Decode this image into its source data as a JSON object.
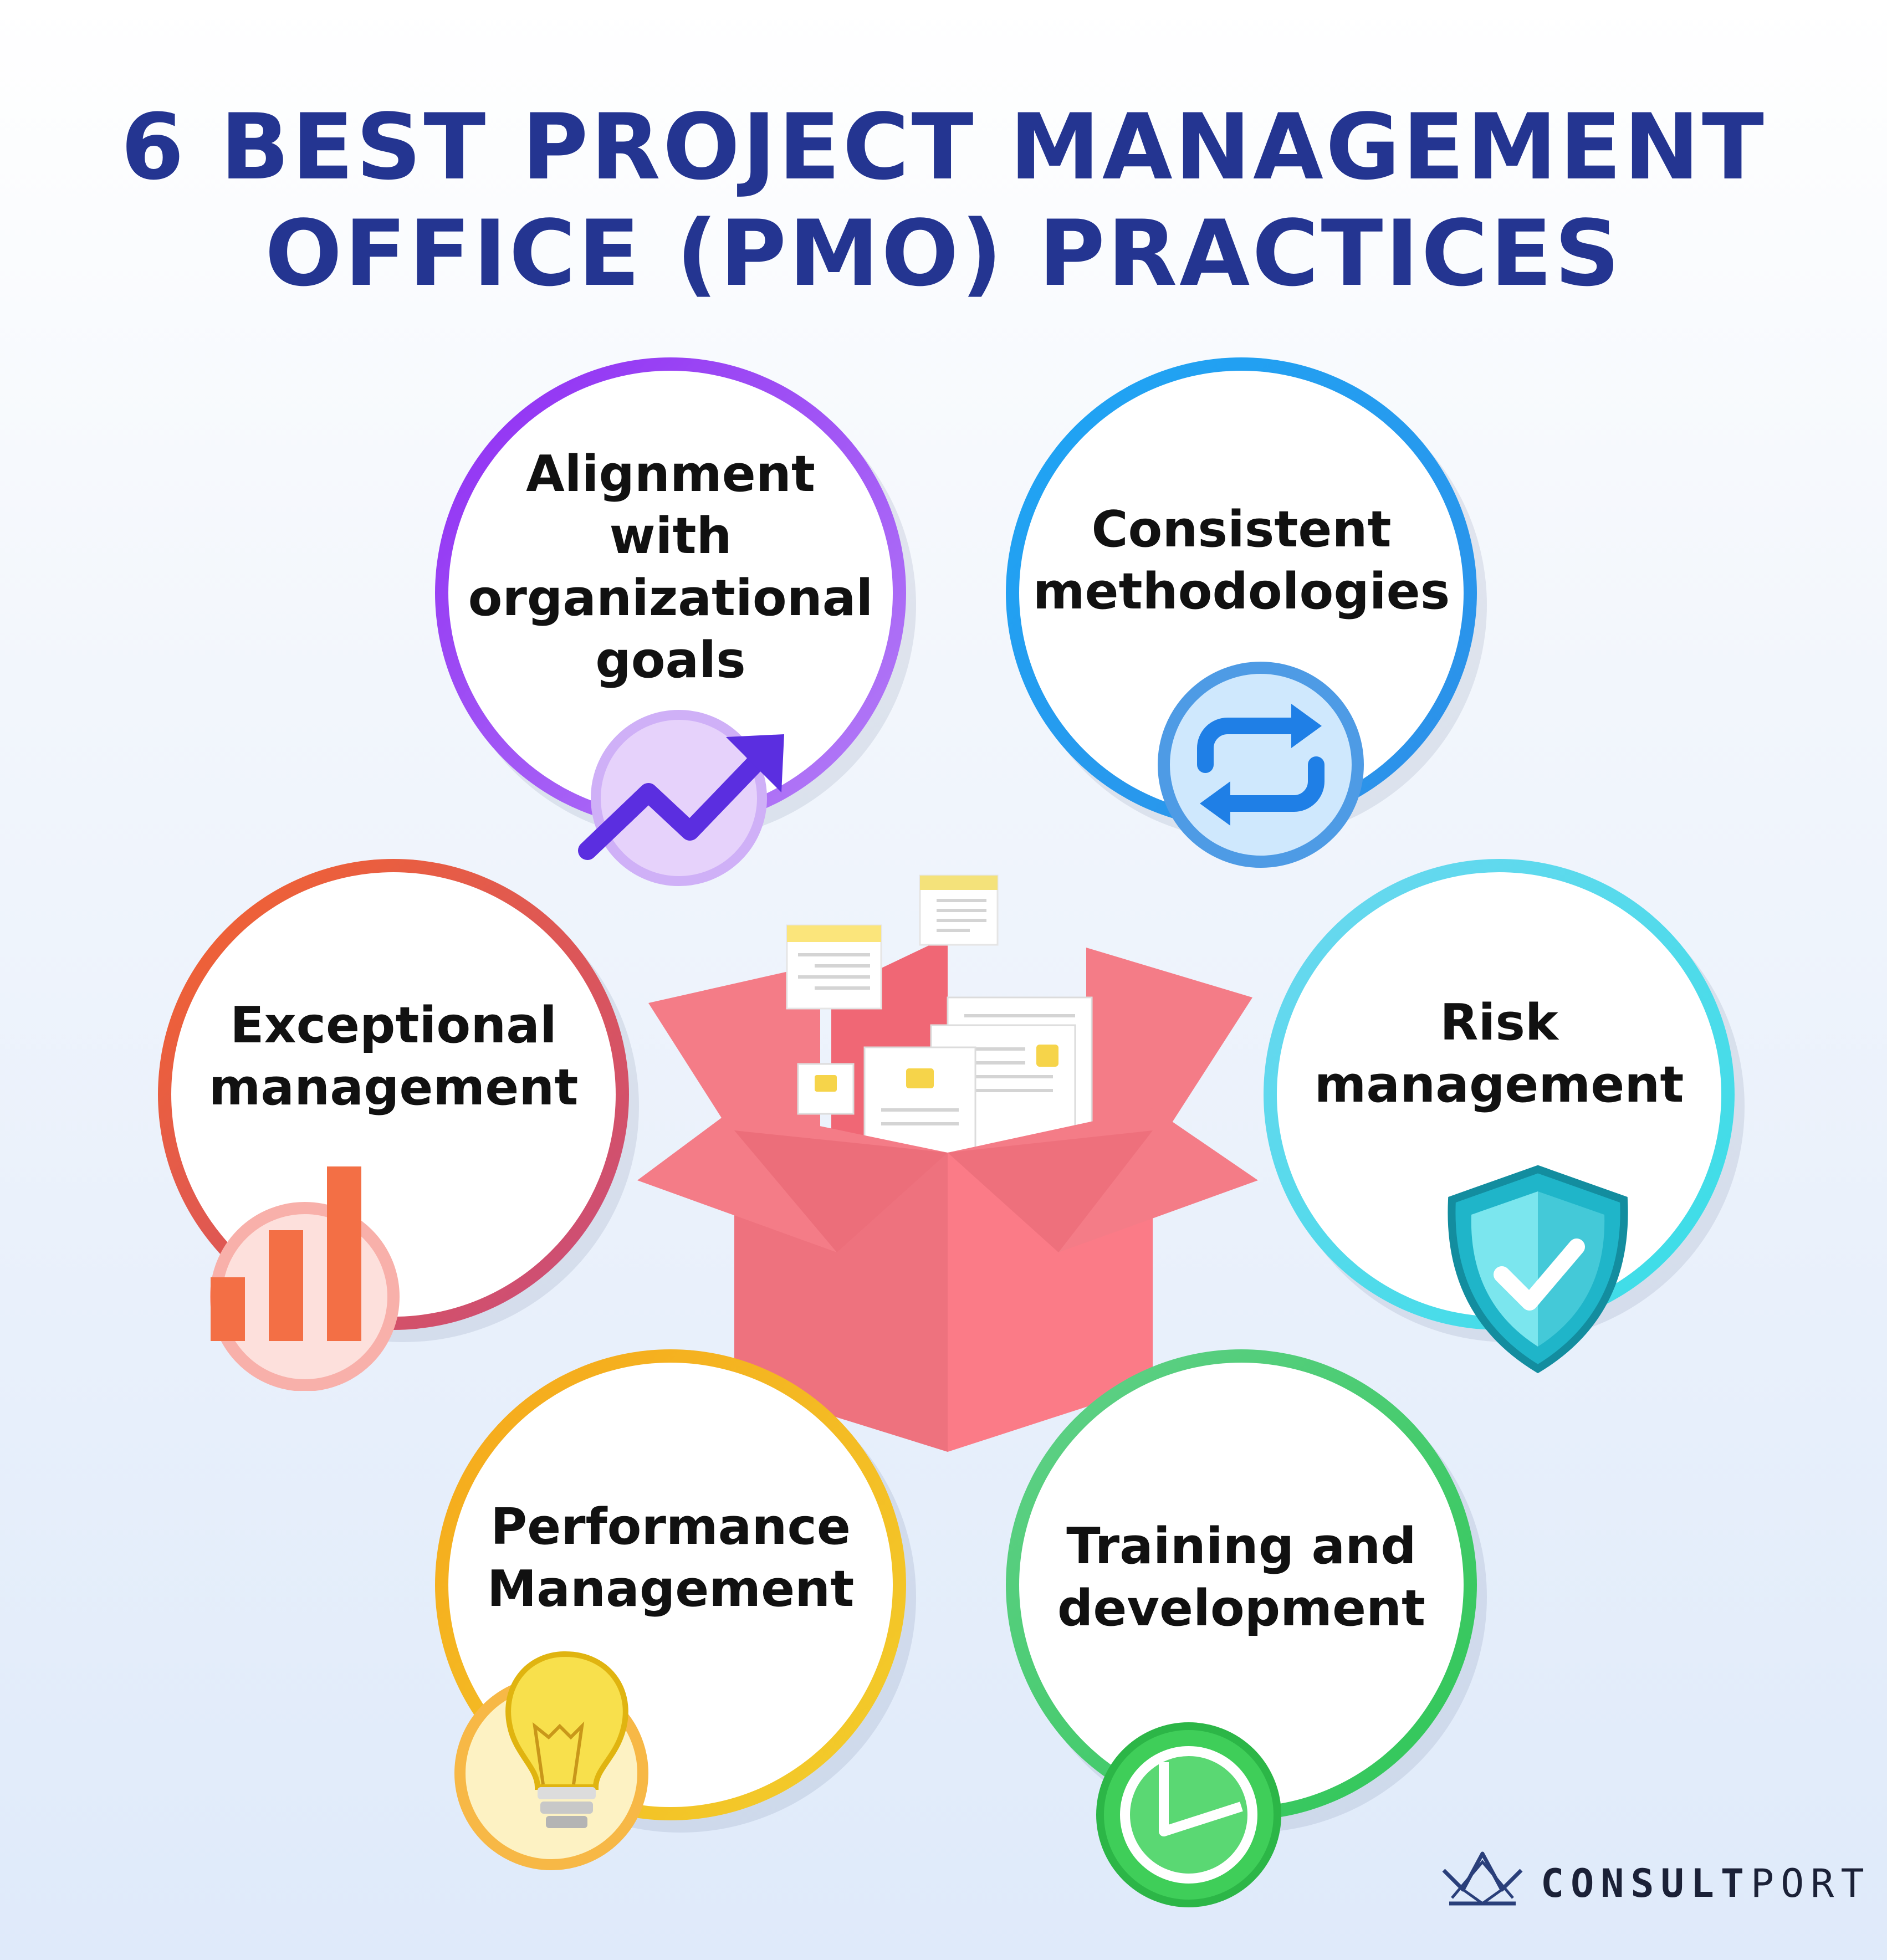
{
  "title": {
    "line1": "6 BEST PROJECT MANAGEMENT",
    "line2": "OFFICE (PMO) PRACTICES"
  },
  "colors": {
    "title": "#243591",
    "background_top": "#ffffff",
    "background_bottom": "#dfeafa",
    "box": "#f47884",
    "purple": "#9d3cf6",
    "blue": "#2a9cf0",
    "red_orange": "#f06a3c",
    "cyan": "#52d8ea",
    "yellow": "#f4b71b",
    "green": "#4fd06a"
  },
  "practices": [
    {
      "id": "alignment",
      "lines": [
        "Alignment",
        "with",
        "organizational",
        "goals"
      ],
      "icon": "trend-up-arrow-icon",
      "color": "purple"
    },
    {
      "id": "consistent",
      "lines": [
        "Consistent",
        "methodologies"
      ],
      "icon": "repeat-arrows-icon",
      "color": "blue"
    },
    {
      "id": "exceptional",
      "lines": [
        "Exceptional",
        "management"
      ],
      "icon": "bar-chart-icon",
      "color": "red_orange"
    },
    {
      "id": "risk",
      "lines": [
        "Risk",
        "management"
      ],
      "icon": "shield-check-icon",
      "color": "cyan"
    },
    {
      "id": "performance",
      "lines": [
        "Performance",
        "Management"
      ],
      "icon": "lightbulb-icon",
      "color": "yellow"
    },
    {
      "id": "training",
      "lines": [
        "Training and",
        "development"
      ],
      "icon": "pie-clock-icon",
      "color": "green"
    }
  ],
  "center_illustration": "open-box-with-documents-icon",
  "brand": {
    "bold": "CONSULT",
    "light": "PORT",
    "logo_icon": "paper-boat-icon"
  }
}
